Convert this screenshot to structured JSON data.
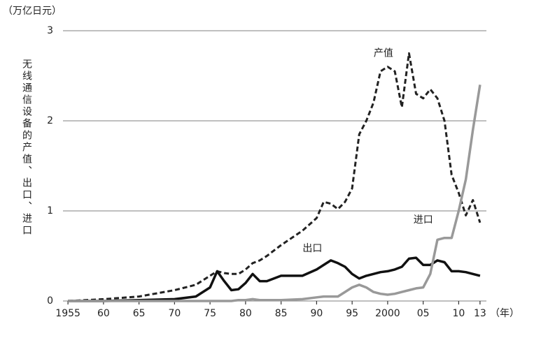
{
  "chart_data": {
    "type": "line",
    "y_unit_label": "（万亿日元）",
    "y_axis_label": "无线通信设备的产值、出口、进口",
    "x_unit_label": "（年）",
    "x": [
      1955,
      1960,
      1965,
      1970,
      1973,
      1975,
      1976,
      1977,
      1978,
      1979,
      1980,
      1981,
      1982,
      1983,
      1985,
      1988,
      1990,
      1991,
      1992,
      1993,
      1994,
      1995,
      1996,
      1997,
      1998,
      1999,
      2000,
      2001,
      2002,
      2003,
      2004,
      2005,
      2006,
      2007,
      2008,
      2009,
      2010,
      2011,
      2012,
      2013
    ],
    "series": [
      {
        "name": "产值",
        "color": "#222222",
        "dash": true,
        "values": [
          0,
          0.02,
          0.05,
          0.12,
          0.18,
          0.28,
          0.33,
          0.31,
          0.3,
          0.3,
          0.35,
          0.42,
          0.45,
          0.5,
          0.62,
          0.78,
          0.92,
          1.1,
          1.08,
          1.02,
          1.1,
          1.25,
          1.85,
          2.0,
          2.2,
          2.55,
          2.6,
          2.55,
          2.15,
          2.75,
          2.3,
          2.25,
          2.35,
          2.25,
          2.0,
          1.4,
          1.2,
          0.95,
          1.12,
          0.87
        ]
      },
      {
        "name": "出口",
        "color": "#111111",
        "dash": false,
        "values": [
          0,
          0,
          0.01,
          0.02,
          0.05,
          0.15,
          0.33,
          0.22,
          0.12,
          0.13,
          0.2,
          0.3,
          0.22,
          0.22,
          0.28,
          0.28,
          0.35,
          0.4,
          0.45,
          0.42,
          0.38,
          0.3,
          0.25,
          0.28,
          0.3,
          0.32,
          0.33,
          0.35,
          0.38,
          0.47,
          0.48,
          0.4,
          0.4,
          0.45,
          0.43,
          0.33,
          0.33,
          0.32,
          0.3,
          0.28
        ]
      },
      {
        "name": "进口",
        "color": "#999999",
        "dash": false,
        "values": [
          0,
          0,
          0,
          0,
          0,
          0,
          0,
          0,
          0,
          0.01,
          0.01,
          0.02,
          0.01,
          0.01,
          0.01,
          0.02,
          0.04,
          0.05,
          0.05,
          0.05,
          0.1,
          0.15,
          0.18,
          0.15,
          0.1,
          0.08,
          0.07,
          0.08,
          0.1,
          0.12,
          0.14,
          0.15,
          0.3,
          0.68,
          0.7,
          0.7,
          1.0,
          1.35,
          1.9,
          2.4
        ]
      }
    ],
    "xlim": [
      1954.3,
      2013.9
    ],
    "xticks": [
      1955,
      {
        "value": 1960,
        "label": "60"
      },
      {
        "value": 1965,
        "label": "65"
      },
      {
        "value": 1970,
        "label": "70"
      },
      {
        "value": 1975,
        "label": "75"
      },
      {
        "value": 1980,
        "label": "80"
      },
      {
        "value": 1985,
        "label": "85"
      },
      {
        "value": 1990,
        "label": "90"
      },
      {
        "value": 1995,
        "label": "95"
      },
      2000,
      {
        "value": 2005,
        "label": "05"
      },
      {
        "value": 2010,
        "label": "10"
      },
      {
        "value": 2013,
        "label": "13"
      }
    ],
    "ylim": [
      0,
      3
    ],
    "yticks": [
      0,
      1,
      2,
      3
    ],
    "grid": true
  }
}
